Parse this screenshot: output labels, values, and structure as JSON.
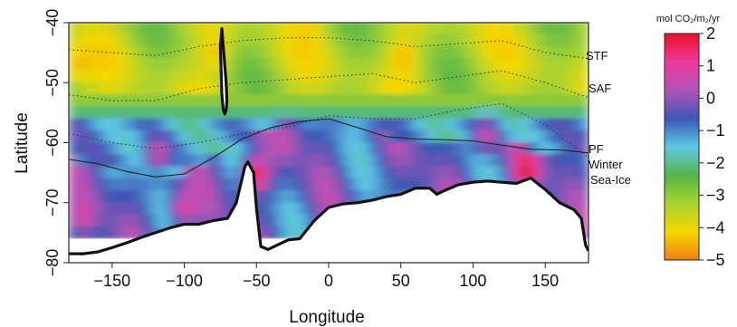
{
  "chart_data": {
    "type": "heatmap",
    "title": "",
    "xlabel": "Longitude",
    "ylabel": "Latitude",
    "xlim": [
      -180,
      180
    ],
    "ylim": [
      -80,
      -40
    ],
    "x_ticks": [
      -150,
      -100,
      -50,
      0,
      50,
      100,
      150
    ],
    "y_ticks": [
      -40,
      -50,
      -60,
      -70,
      -80
    ],
    "x_tick_labels": [
      "−150",
      "−100",
      "−50",
      "0",
      "50",
      "100",
      "150"
    ],
    "y_tick_labels": [
      "−40",
      "−50",
      "−60",
      "−70",
      "−80"
    ],
    "colorbar": {
      "title": "mol CO₂/m₂/yr",
      "min": -5,
      "max": 2,
      "ticks": [
        2,
        1,
        0,
        -1,
        -2,
        -3,
        -4,
        -5
      ],
      "tick_labels": [
        "2",
        "1",
        "0",
        "−1",
        "−2",
        "−3",
        "−4",
        "−5"
      ],
      "colors": [
        "#f07e12",
        "#f5d800",
        "#a8d232",
        "#55b54a",
        "#5ec8e8",
        "#3e56b3",
        "#b254b8",
        "#ee3a9a",
        "#e8102a"
      ]
    },
    "front_labels": [
      "STF",
      "SAF",
      "PF",
      "Winter",
      "Sea-Ice"
    ],
    "fronts": {
      "winter_sea_ice": {
        "lon": [
          -180,
          -160,
          -140,
          -120,
          -100,
          -80,
          -60,
          -40,
          -20,
          0,
          20,
          40,
          60,
          80,
          100,
          120,
          140,
          160,
          180
        ],
        "lat": [
          -62.8,
          -63.5,
          -64.8,
          -65.7,
          -65.2,
          -62.5,
          -59.4,
          -57.5,
          -56.5,
          -56.0,
          -57.5,
          -59.0,
          -59.4,
          -59.5,
          -59.7,
          -60.4,
          -61.1,
          -61.2,
          -61.7
        ]
      },
      "polar_front": {
        "lon": [
          -180,
          -150,
          -120,
          -90,
          -60,
          -30,
          0,
          30,
          60,
          90,
          120,
          150,
          180
        ],
        "lat": [
          -58.5,
          -60,
          -61,
          -60,
          -58.5,
          -57.5,
          -55.5,
          -56,
          -56,
          -54.5,
          -53.5,
          -57,
          -62.5
        ]
      },
      "subantarctic_front": {
        "lon": [
          -180,
          -150,
          -120,
          -90,
          -60,
          -30,
          0,
          30,
          60,
          90,
          120,
          150,
          180
        ],
        "lat": [
          -52,
          -53,
          -53,
          -51,
          -50,
          -49.5,
          -49,
          -48.5,
          -50,
          -49,
          -48,
          -50,
          -52.5
        ]
      },
      "subtropical_front": {
        "lon": [
          -180,
          -150,
          -120,
          -90,
          -60,
          -30,
          0,
          30,
          60,
          90,
          120,
          150,
          180
        ],
        "lat": [
          -44.5,
          -45,
          -45.5,
          -44,
          -43,
          -42.5,
          -42.5,
          -43,
          -44,
          -43.5,
          -43,
          -45,
          -46
        ]
      }
    },
    "antarctic_coast": {
      "lon": [
        -180,
        -170,
        -160,
        -150,
        -140,
        -130,
        -120,
        -110,
        -100,
        -90,
        -80,
        -70,
        -64,
        -58,
        -56,
        -52,
        -50,
        -47,
        -42,
        -35,
        -28,
        -20,
        -10,
        0,
        10,
        20,
        30,
        40,
        50,
        60,
        70,
        75,
        80,
        90,
        100,
        110,
        120,
        130,
        140,
        150,
        160,
        170,
        175,
        178,
        180
      ],
      "lat": [
        -78.5,
        -78.5,
        -78.2,
        -77.5,
        -76.7,
        -75.8,
        -75.0,
        -74.2,
        -73.6,
        -73.6,
        -73.0,
        -72.6,
        -70.0,
        -64.0,
        -63.2,
        -65.0,
        -71.0,
        -77.3,
        -77.8,
        -77.0,
        -76.2,
        -76.0,
        -73.0,
        -70.8,
        -70.2,
        -70.0,
        -69.6,
        -69.0,
        -68.6,
        -67.6,
        -67.6,
        -68.6,
        -68.0,
        -67.0,
        -66.6,
        -66.4,
        -66.6,
        -66.8,
        -65.9,
        -67.8,
        -70.0,
        -71.2,
        -72.6,
        -77.1,
        -78.0
      ]
    },
    "south_america_coast": {
      "lon": [
        -74,
        -73,
        -72,
        -71,
        -70.5,
        -71,
        -72,
        -73,
        -74,
        -74.5,
        -75,
        -74
      ],
      "lat": [
        -41,
        -44,
        -47,
        -50,
        -53,
        -54.5,
        -55.2,
        -54.5,
        -52,
        -48,
        -44,
        -41
      ]
    },
    "hot_spots": [
      {
        "lon": -172,
        "lat": -47,
        "value": -4.5
      },
      {
        "lon": -78,
        "lat": -45,
        "value": -4.4
      },
      {
        "lon": -15,
        "lat": -41,
        "value": -4.3
      },
      {
        "lon": 52,
        "lat": -46,
        "value": -4.5
      },
      {
        "lon": -50,
        "lat": -65.5,
        "value": 1.8
      },
      {
        "lon": 137,
        "lat": -64.5,
        "value": 1.9
      },
      {
        "lon": -118,
        "lat": -62,
        "value": 0.7
      },
      {
        "lon": 110,
        "lat": -59,
        "value": 0.6
      },
      {
        "lon": -30,
        "lat": -60,
        "value": 0.5
      },
      {
        "lon": -170,
        "lat": -72,
        "value": 0.8
      },
      {
        "lon": -100,
        "lat": -71,
        "value": 0.9
      },
      {
        "lon": 90,
        "lat": -70,
        "value": 0.4
      }
    ]
  }
}
